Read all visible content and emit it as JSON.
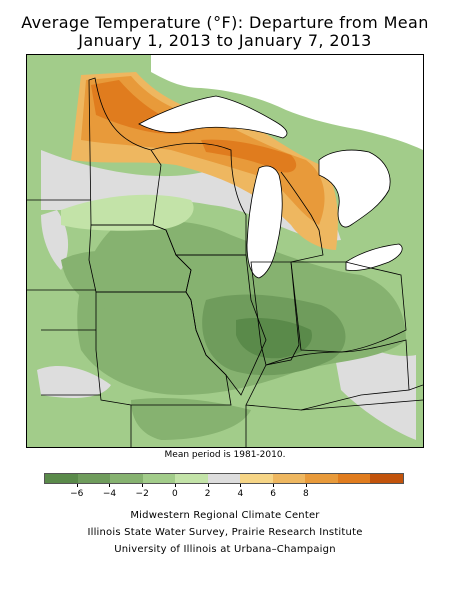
{
  "title": {
    "line1": "Average Temperature (°F): Departure from Mean",
    "line2": "January 1, 2013 to January 7, 2013"
  },
  "map": {
    "region": "Midwest United States",
    "background": "#ffffff",
    "lake_color": "#ffffff",
    "boundary_color": "#000000"
  },
  "mean_note": "Mean period is 1981-2010.",
  "legend": {
    "colors": [
      "#5a8a4a",
      "#6f9c5c",
      "#86b270",
      "#a2cc8a",
      "#c3e3a8",
      "#dddddd",
      "#f6d586",
      "#eeb760",
      "#e89a3a",
      "#e07c1e",
      "#c2530b"
    ],
    "ticks": [
      "−6",
      "−4",
      "−2",
      "0",
      "2",
      "4",
      "6",
      "8"
    ]
  },
  "credits": {
    "line1": "Midwestern Regional Climate Center",
    "line2": "Illinois State Water Survey, Prairie Research Institute",
    "line3": "University of Illinois at Urbana–Champaign"
  }
}
